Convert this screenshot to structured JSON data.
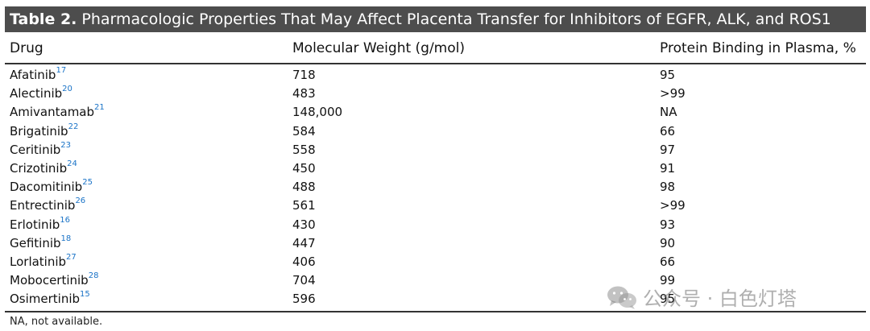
{
  "table": {
    "label": "Table 2.",
    "title": "Pharmacologic Properties That May Affect Placenta Transfer for Inhibitors of EGFR, ALK, and ROS1",
    "columns": [
      "Drug",
      "Molecular Weight (g/mol)",
      "Protein Binding in Plasma, %"
    ],
    "rows": [
      {
        "drug": "Afatinib",
        "ref": "17",
        "mw": "718",
        "pb": "95"
      },
      {
        "drug": "Alectinib",
        "ref": "20",
        "mw": "483",
        "pb": ">99"
      },
      {
        "drug": "Amivantamab",
        "ref": "21",
        "mw": "148,000",
        "pb": "NA"
      },
      {
        "drug": "Brigatinib",
        "ref": "22",
        "mw": "584",
        "pb": "66"
      },
      {
        "drug": "Ceritinib",
        "ref": "23",
        "mw": "558",
        "pb": "97"
      },
      {
        "drug": "Crizotinib",
        "ref": "24",
        "mw": "450",
        "pb": "91"
      },
      {
        "drug": "Dacomitinib",
        "ref": "25",
        "mw": "488",
        "pb": "98"
      },
      {
        "drug": "Entrectinib",
        "ref": "26",
        "mw": "561",
        "pb": ">99"
      },
      {
        "drug": "Erlotinib",
        "ref": "16",
        "mw": "430",
        "pb": "93"
      },
      {
        "drug": "Gefitinib",
        "ref": "18",
        "mw": "447",
        "pb": "90"
      },
      {
        "drug": "Lorlatinib",
        "ref": "27",
        "mw": "406",
        "pb": "66"
      },
      {
        "drug": "Mobocertinib",
        "ref": "28",
        "mw": "704",
        "pb": "99"
      },
      {
        "drug": "Osimertinib",
        "ref": "15",
        "mw": "596",
        "pb": "95"
      }
    ],
    "footnote": "NA, not available."
  },
  "watermark": {
    "text": "公众号 · 白色灯塔",
    "icon": "wechat-icon"
  },
  "colors": {
    "title_bg": "#4d4d4d",
    "ref_link": "#1a73c7"
  }
}
